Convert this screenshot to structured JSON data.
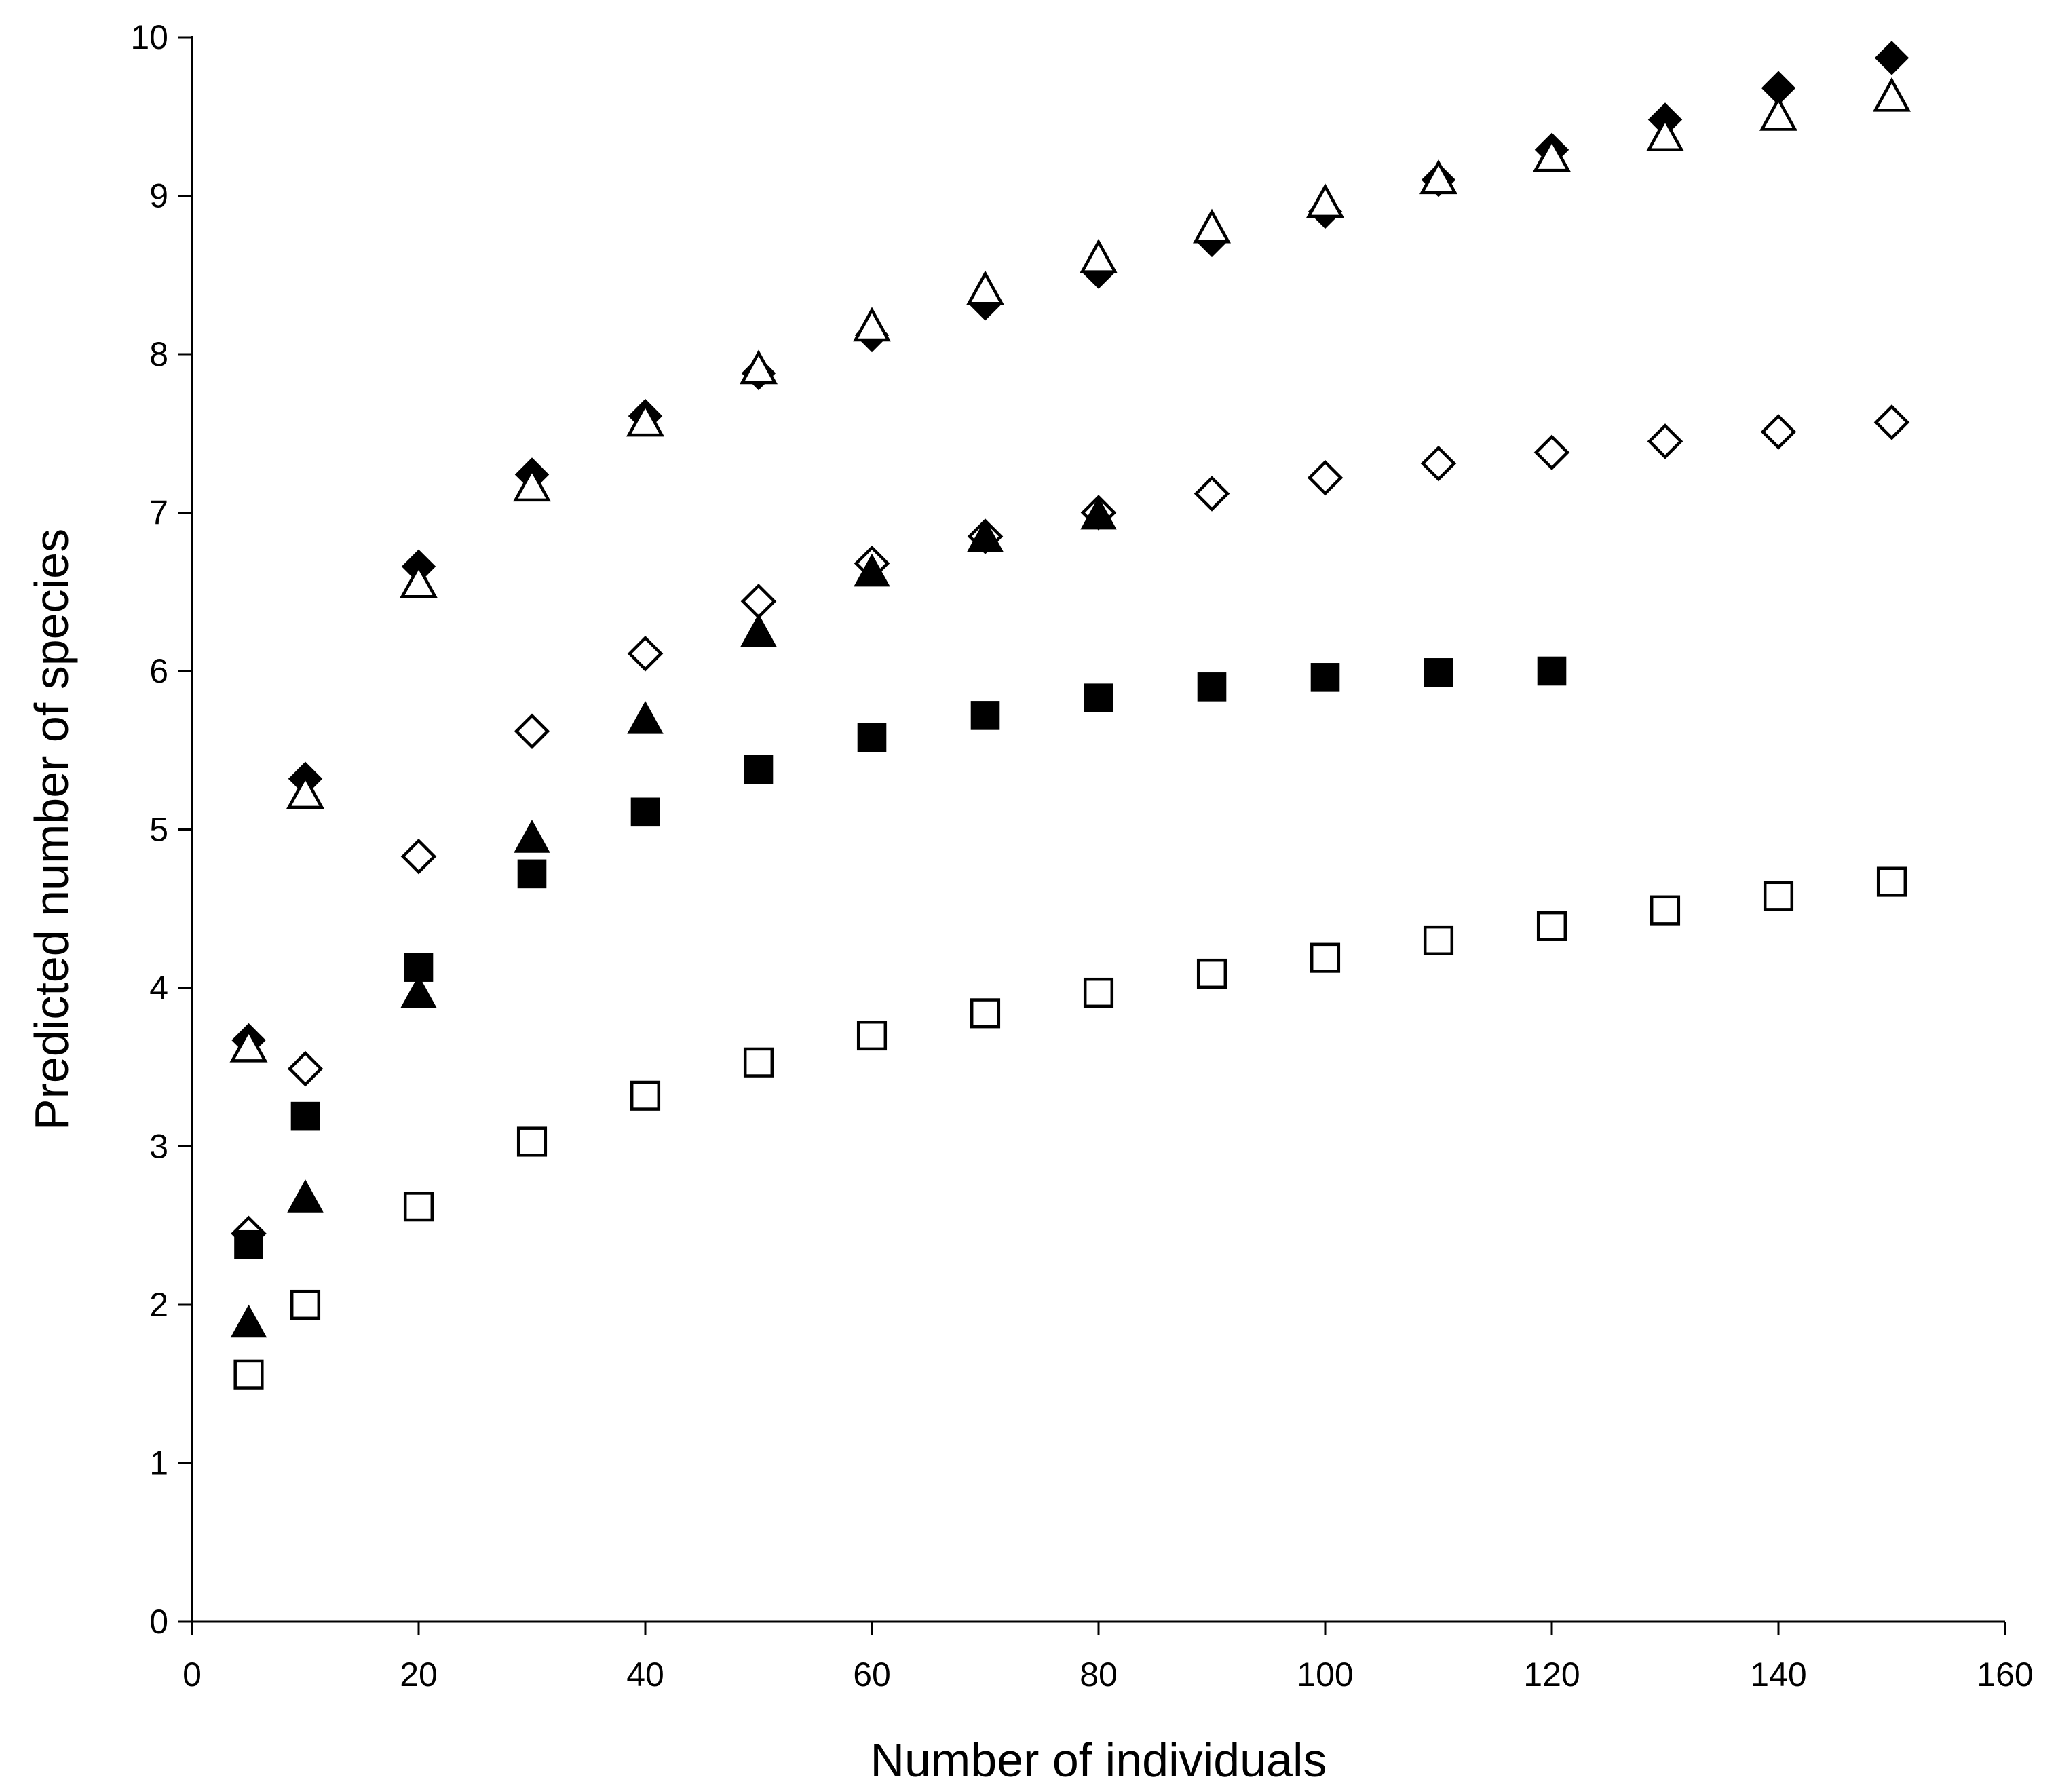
{
  "chart_data": {
    "type": "scatter",
    "title": "",
    "xlabel": "Number of individuals",
    "ylabel": "Predicted number of species",
    "xlim": [
      0,
      160
    ],
    "ylim": [
      0,
      10
    ],
    "xticks": [
      0,
      20,
      40,
      60,
      80,
      100,
      120,
      140,
      160
    ],
    "yticks": [
      0,
      1,
      2,
      3,
      4,
      5,
      6,
      7,
      8,
      9,
      10
    ],
    "xtick_labels": [
      "0",
      "20",
      "40",
      "60",
      "80",
      "100",
      "120",
      "140",
      "160"
    ],
    "ytick_labels": [
      "0",
      "1",
      "2",
      "3",
      "4",
      "5",
      "6",
      "7",
      "8",
      "9",
      "10"
    ],
    "grid": false,
    "legend": "none",
    "series": [
      {
        "marker": "diamond",
        "fill": "filled",
        "color": "#000000",
        "points": [
          [
            5,
            3.67
          ],
          [
            10,
            5.32
          ],
          [
            20,
            6.66
          ],
          [
            30,
            7.24
          ],
          [
            40,
            7.61
          ],
          [
            50,
            7.88
          ],
          [
            60,
            8.12
          ],
          [
            70,
            8.32
          ],
          [
            80,
            8.52
          ],
          [
            90,
            8.72
          ],
          [
            100,
            8.9
          ],
          [
            110,
            9.1
          ],
          [
            120,
            9.29
          ],
          [
            130,
            9.48
          ],
          [
            140,
            9.68
          ],
          [
            150,
            9.87
          ]
        ]
      },
      {
        "marker": "triangle",
        "fill": "open",
        "color": "#000000",
        "points": [
          [
            5,
            3.62
          ],
          [
            10,
            5.22
          ],
          [
            20,
            6.55
          ],
          [
            30,
            7.16
          ],
          [
            40,
            7.57
          ],
          [
            50,
            7.9
          ],
          [
            60,
            8.17
          ],
          [
            70,
            8.4
          ],
          [
            80,
            8.6
          ],
          [
            90,
            8.79
          ],
          [
            100,
            8.95
          ],
          [
            110,
            9.1
          ],
          [
            120,
            9.24
          ],
          [
            130,
            9.37
          ],
          [
            140,
            9.5
          ],
          [
            150,
            9.62
          ]
        ]
      },
      {
        "marker": "diamond",
        "fill": "open",
        "color": "#000000",
        "points": [
          [
            5,
            2.45
          ],
          [
            10,
            3.49
          ],
          [
            20,
            4.83
          ],
          [
            30,
            5.62
          ],
          [
            40,
            6.11
          ],
          [
            50,
            6.44
          ],
          [
            60,
            6.68
          ],
          [
            70,
            6.85
          ],
          [
            80,
            7.0
          ],
          [
            90,
            7.12
          ],
          [
            100,
            7.22
          ],
          [
            110,
            7.31
          ],
          [
            120,
            7.38
          ],
          [
            130,
            7.45
          ],
          [
            140,
            7.51
          ],
          [
            150,
            7.57
          ]
        ]
      },
      {
        "marker": "triangle",
        "fill": "filled",
        "color": "#000000",
        "points": [
          [
            5,
            1.88
          ],
          [
            10,
            2.67
          ],
          [
            20,
            3.96
          ],
          [
            30,
            4.94
          ],
          [
            40,
            5.69
          ],
          [
            50,
            6.24
          ],
          [
            60,
            6.62
          ],
          [
            70,
            6.84
          ],
          [
            80,
            6.98
          ]
        ]
      },
      {
        "marker": "square",
        "fill": "filled",
        "color": "#000000",
        "points": [
          [
            5,
            2.38
          ],
          [
            10,
            3.19
          ],
          [
            20,
            4.13
          ],
          [
            30,
            4.72
          ],
          [
            40,
            5.11
          ],
          [
            50,
            5.38
          ],
          [
            60,
            5.58
          ],
          [
            70,
            5.72
          ],
          [
            80,
            5.83
          ],
          [
            90,
            5.9
          ],
          [
            100,
            5.96
          ],
          [
            110,
            5.99
          ],
          [
            120,
            6.0
          ]
        ]
      },
      {
        "marker": "square",
        "fill": "open",
        "color": "#000000",
        "points": [
          [
            5,
            1.56
          ],
          [
            10,
            2.0
          ],
          [
            20,
            2.62
          ],
          [
            30,
            3.03
          ],
          [
            40,
            3.32
          ],
          [
            50,
            3.53
          ],
          [
            60,
            3.7
          ],
          [
            70,
            3.84
          ],
          [
            80,
            3.97
          ],
          [
            90,
            4.09
          ],
          [
            100,
            4.19
          ],
          [
            110,
            4.3
          ],
          [
            120,
            4.39
          ],
          [
            130,
            4.49
          ],
          [
            140,
            4.58
          ],
          [
            150,
            4.67
          ]
        ]
      }
    ]
  }
}
